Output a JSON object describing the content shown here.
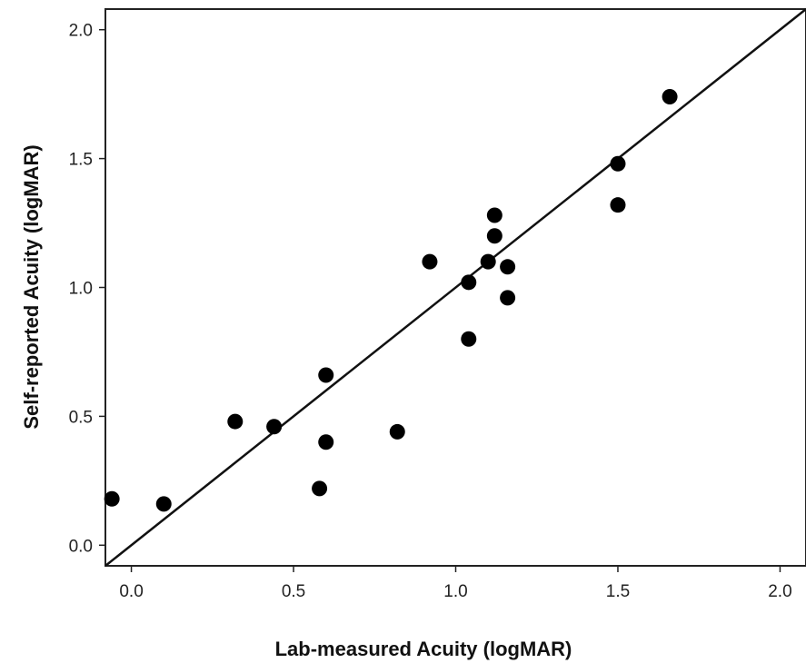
{
  "chart_data": {
    "type": "scatter",
    "title": "",
    "xlabel": "Lab-measured Acuity (logMAR)",
    "ylabel": "Self-reported Acuity (logMAR)",
    "xlim": [
      -0.08,
      2.08
    ],
    "ylim": [
      -0.08,
      2.08
    ],
    "x_ticks": [
      "0.0",
      "0.5",
      "1.0",
      "1.5",
      "2.0"
    ],
    "y_ticks": [
      "0.0",
      "0.5",
      "1.0",
      "1.5",
      "2.0"
    ],
    "grid": false,
    "legend": "none",
    "reference_line": {
      "label": "",
      "x": [
        -0.08,
        2.08
      ],
      "y": [
        -0.08,
        2.08
      ]
    },
    "series": [
      {
        "color": "#000000",
        "points": [
          {
            "x": -0.06,
            "y": 0.18
          },
          {
            "x": 0.1,
            "y": 0.16
          },
          {
            "x": 0.32,
            "y": 0.48
          },
          {
            "x": 0.44,
            "y": 0.46
          },
          {
            "x": 0.58,
            "y": 0.22
          },
          {
            "x": 0.6,
            "y": 0.4
          },
          {
            "x": 0.6,
            "y": 0.66
          },
          {
            "x": 0.82,
            "y": 0.44
          },
          {
            "x": 0.92,
            "y": 1.1
          },
          {
            "x": 1.04,
            "y": 1.02
          },
          {
            "x": 1.04,
            "y": 0.8
          },
          {
            "x": 1.1,
            "y": 1.1
          },
          {
            "x": 1.12,
            "y": 1.28
          },
          {
            "x": 1.12,
            "y": 1.2
          },
          {
            "x": 1.16,
            "y": 1.08
          },
          {
            "x": 1.16,
            "y": 0.96
          },
          {
            "x": 1.5,
            "y": 1.48
          },
          {
            "x": 1.5,
            "y": 1.32
          },
          {
            "x": 1.66,
            "y": 1.74
          }
        ]
      }
    ]
  }
}
